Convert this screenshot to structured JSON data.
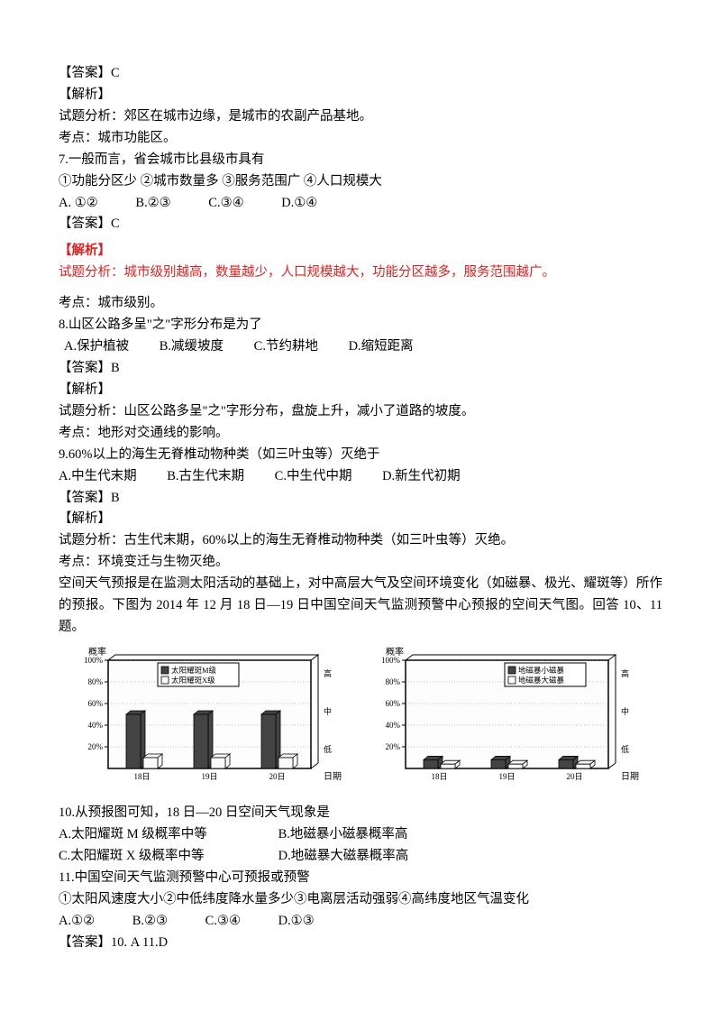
{
  "q6_answer": "【答案】C",
  "q6_exp_h": "【解析】",
  "q6_exp_t": "试题分析：郊区在城市边缘，是城市的农副产品基地。",
  "q6_kp": "考点：城市功能区。",
  "q7_stem": "7.一般而言，省会城市比县级市具有",
  "q7_opts_line": "①功能分区少  ②城市数量多  ③服务范围广  ④人口规模大",
  "q7_A": "A. ①②",
  "q7_B": "B.②③",
  "q7_C": "C.③④",
  "q7_D": "D.①④",
  "q7_answer": "【答案】C",
  "q7_exp_h": "【解析】",
  "q7_exp_red": "试题分析：城市级别越高，数量越少，人口规模越大，功能分区越多，服务范围越广。",
  "q7_kp": "考点：城市级别。",
  "q8_stem": "8.山区公路多呈\"之\"字形分布是为了",
  "q8_A": "A.保护植被",
  "q8_B": "B.减缓坡度",
  "q8_C": "C.节约耕地",
  "q8_D": "D.缩短距离",
  "q8_answer": "【答案】B",
  "q8_exp_h": "【解析】",
  "q8_exp_t": "试题分析：山区公路多呈\"之\"字形分布，盘旋上升，减小了道路的坡度。",
  "q8_kp": "考点：地形对交通线的影响。",
  "q9_stem": "9.60%以上的海生无脊椎动物种类（如三叶虫等）灭绝于",
  "q9_A": "A.中生代末期",
  "q9_B": "B.古生代末期",
  "q9_C": "C.中生代中期",
  "q9_D": "D.新生代初期",
  "q9_answer": "【答案】B",
  "q9_exp_h": "【解析】",
  "q9_exp_t": "试题分析：古生代末期，60%以上的海生无脊椎动物种类（如三叶虫等）灭绝。",
  "q9_kp": "考点：环境变迁与生物灭绝。",
  "passage1": "空间天气预报是在监测太阳活动的基础上，对中高层大气及空间环境变化（如磁暴、极光、耀斑等）所作的预报。下图为 2014 年 12 月 18 日—19 日中国空间天气监测预警中心预报的空间天气图。回答 10、11 题。",
  "chart": {
    "left": {
      "y_label": "概率",
      "x_label": "日期",
      "ylim": [
        0,
        100
      ],
      "y_ticks": [
        "100%",
        "80%",
        "60%",
        "40%",
        "20%"
      ],
      "bg_color": "#fdfdfd",
      "axis_color": "#000",
      "grid_color": "#666",
      "bar_color_dark": "#444",
      "bar_color_light": "#fafafa",
      "bar_border": "#000",
      "categories": [
        "18日",
        "19日",
        "20日"
      ],
      "series": [
        {
          "name": "太阳耀斑M级",
          "vals": [
            50,
            50,
            50
          ],
          "fill": "#444"
        },
        {
          "name": "太阳耀斑X级",
          "vals": [
            10,
            10,
            10
          ],
          "fill": "#fafafa"
        }
      ],
      "legend": [
        "太阳耀斑M级",
        "太阳耀斑X级"
      ],
      "right_axis": [
        "高",
        "中",
        "低"
      ]
    },
    "right": {
      "y_label": "概率",
      "x_label": "日期",
      "ylim": [
        0,
        100
      ],
      "y_ticks": [
        "100%",
        "80%",
        "60%",
        "40%",
        "20%"
      ],
      "bg_color": "#fdfdfd",
      "axis_color": "#000",
      "grid_color": "#666",
      "bar_color_dark": "#444",
      "bar_color_light": "#fafafa",
      "bar_border": "#000",
      "categories": [
        "18日",
        "19日",
        "20日"
      ],
      "series": [
        {
          "name": "地磁暴小磁暴",
          "vals": [
            8,
            8,
            8
          ],
          "fill": "#444"
        },
        {
          "name": "地磁暴大磁暴",
          "vals": [
            4,
            4,
            4
          ],
          "fill": "#fafafa"
        }
      ],
      "legend": [
        "地磁暴小磁暴",
        "地磁暴大磁暴"
      ],
      "right_axis": [
        "高",
        "中",
        "低"
      ]
    }
  },
  "q10_stem": "10.从预报图可知，18 日—20 日空间天气现象是",
  "q10_A": "A.太阳耀斑 M 级概率中等",
  "q10_B": "B.地磁暴小磁暴概率高",
  "q10_C": "C.太阳耀斑 X 级概率中等",
  "q10_D": "D.地磁暴大磁暴概率高",
  "q11_stem": "11.中国空间天气监测预警中心可预报或预警",
  "q11_opts_line": "①太阳风速度大小②中低纬度降水量多少③电离层活动强弱④高纬度地区气温变化",
  "q11_A": "A.①②",
  "q11_B": "B.②③",
  "q11_C": "C.③④",
  "q11_D": "D.①③",
  "ans_10_11": "【答案】10. A  11.D"
}
